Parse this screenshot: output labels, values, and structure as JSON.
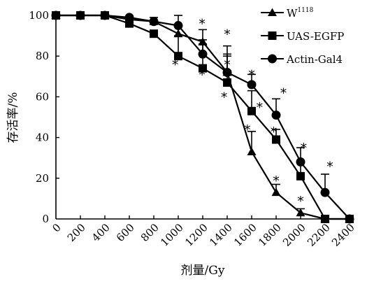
{
  "chart_data": {
    "type": "line",
    "xlabel": "剂量/Gy",
    "ylabel": "存活率/%",
    "xlim": [
      0,
      2400
    ],
    "ylim": [
      0,
      100
    ],
    "x_ticks": [
      0,
      200,
      400,
      600,
      800,
      1000,
      1200,
      1400,
      1600,
      1800,
      2000,
      2200,
      2400
    ],
    "y_ticks": [
      0,
      20,
      40,
      60,
      80,
      100
    ],
    "grid": false,
    "legend_position": "top-right",
    "series": [
      {
        "name": "W",
        "name_superscript": "1118",
        "marker": "triangle",
        "x": [
          0,
          200,
          400,
          600,
          800,
          1000,
          1200,
          1400,
          1600,
          1800,
          2000,
          2200,
          2400
        ],
        "y": [
          100,
          100,
          100,
          98,
          97,
          91,
          87,
          72,
          33,
          13,
          3,
          0,
          0
        ],
        "error_upper": [
          0,
          0,
          0,
          0,
          0,
          0,
          6,
          8,
          10,
          4,
          2,
          0,
          0
        ]
      },
      {
        "name": "UAS-EGFP",
        "marker": "square",
        "x": [
          0,
          200,
          400,
          600,
          800,
          1000,
          1200,
          1400,
          1600,
          1800,
          2000,
          2200,
          2400
        ],
        "y": [
          100,
          100,
          100,
          96,
          91,
          80,
          74,
          67,
          53,
          39,
          21,
          0,
          0
        ],
        "error_upper": [
          0,
          0,
          0,
          0,
          0,
          10,
          12,
          18,
          10,
          5,
          7,
          0,
          0
        ]
      },
      {
        "name": "Actin-Gal4",
        "marker": "circle",
        "x": [
          0,
          200,
          400,
          600,
          800,
          1000,
          1200,
          1400,
          1600,
          1800,
          2000,
          2200,
          2400
        ],
        "y": [
          100,
          100,
          100,
          99,
          97,
          95,
          81,
          72,
          66,
          51,
          28,
          13,
          0
        ],
        "error_upper": [
          0,
          0,
          0,
          0,
          2,
          5,
          7,
          9,
          5,
          8,
          7,
          9,
          0
        ]
      }
    ],
    "significance_marks": [
      {
        "label": "*",
        "x": 975,
        "y": 77
      },
      {
        "label": "*",
        "x": 1195,
        "y": 97
      },
      {
        "label": "*",
        "x": 1195,
        "y": 72
      },
      {
        "label": "*",
        "x": 1400,
        "y": 92
      },
      {
        "label": "*",
        "x": 1400,
        "y": 77
      },
      {
        "label": "*",
        "x": 1375,
        "y": 61
      },
      {
        "label": "*",
        "x": 1600,
        "y": 72
      },
      {
        "label": "*",
        "x": 1565,
        "y": 45
      },
      {
        "label": "*",
        "x": 1665,
        "y": 56
      },
      {
        "label": "*",
        "x": 1780,
        "y": 44
      },
      {
        "label": "*",
        "x": 1800,
        "y": 20
      },
      {
        "label": "*",
        "x": 1860,
        "y": 63
      },
      {
        "label": "*",
        "x": 2025,
        "y": 36
      },
      {
        "label": "*",
        "x": 2000,
        "y": 10
      },
      {
        "label": "*",
        "x": 2240,
        "y": 27
      }
    ]
  }
}
